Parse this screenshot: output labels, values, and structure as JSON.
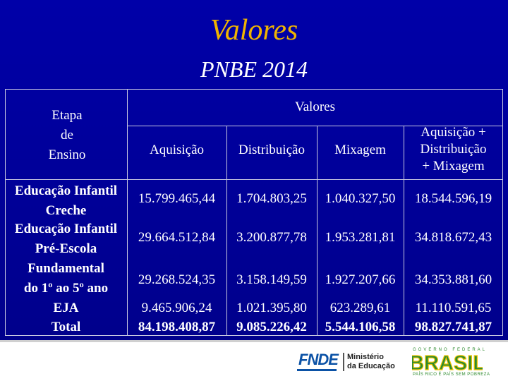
{
  "title": "Valores",
  "subtitle": "PNBE 2014",
  "table": {
    "stub_header": [
      "Etapa",
      "de",
      "Ensino"
    ],
    "group_header": "Valores",
    "columns": [
      "Aquisição",
      "Distribuição",
      "Mixagem",
      [
        "Aquisição +",
        "Distribuição",
        "+ Mixagem"
      ]
    ],
    "rows": [
      {
        "label": [
          "Educação Infantil",
          "Creche"
        ],
        "values": [
          "15.799.465,44",
          "1.704.803,25",
          "1.040.327,50",
          "18.544.596,19"
        ]
      },
      {
        "label": [
          "Educação Infantil",
          "Pré-Escola"
        ],
        "values": [
          "29.664.512,84",
          "3.200.877,78",
          "1.953.281,81",
          "34.818.672,43"
        ]
      },
      {
        "label": [
          "Fundamental",
          "do 1º ao 5º ano"
        ],
        "values": [
          "29.268.524,35",
          "3.158.149,59",
          "1.927.207,66",
          "34.353.881,60"
        ]
      },
      {
        "label": [
          "EJA"
        ],
        "values": [
          "9.465.906,24",
          "1.021.395,80",
          "623.289,61",
          "11.110.591,65"
        ]
      },
      {
        "label": [
          "Total"
        ],
        "values": [
          "84.198.408,87",
          "9.085.226,42",
          "5.544.106,58",
          "98.827.741,87"
        ]
      }
    ]
  },
  "footer": {
    "fnde_logo": "FNDE",
    "ministerio": [
      "Ministério",
      "da Educação"
    ],
    "gov_top": "GOVERNO FEDERAL",
    "brasil": "BRASIL",
    "gov_bottom": "PAÍS RICO É PAÍS SEM POBREZA",
    "colors": {
      "brasil_green": "#2d8a2d",
      "brasil_yellow": "#f2c500",
      "fnde_blue": "#0b52a6"
    }
  },
  "colors": {
    "background": "#000090",
    "title": "#f0b400",
    "text": "#ffffff"
  }
}
